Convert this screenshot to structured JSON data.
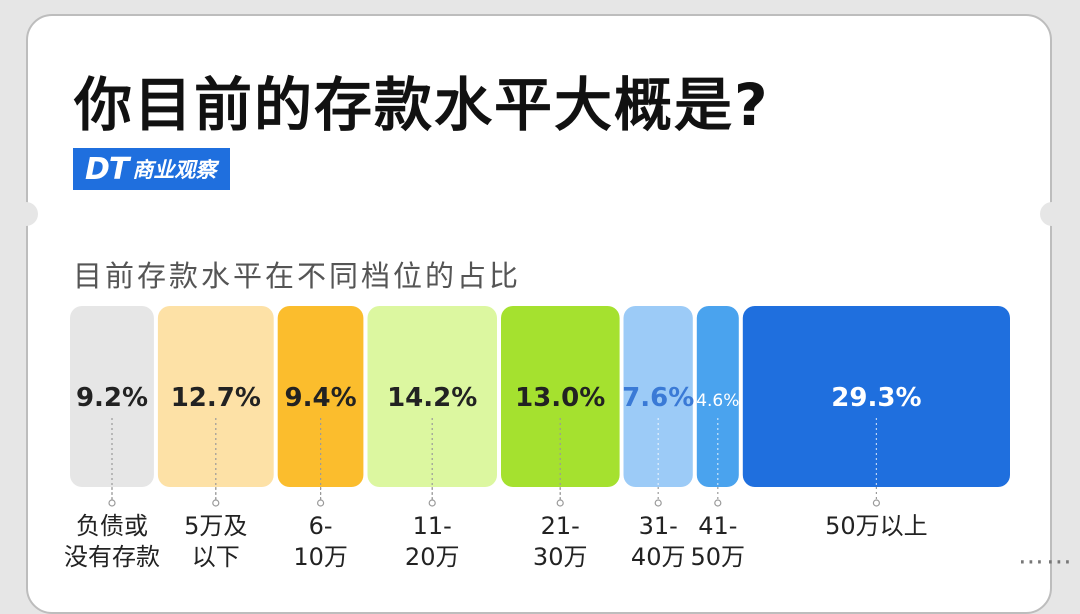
{
  "title": "你目前的存款水平大概是?",
  "brand": {
    "mark": "DT",
    "name": "商业观察",
    "color": "#1f6fde"
  },
  "subtitle": "目前存款水平在不同档位的占比",
  "chart_data": {
    "type": "bar",
    "orientation": "stacked-horizontal-proportional",
    "title": "",
    "categories": [
      [
        "负债或",
        "没有存款"
      ],
      [
        "5万及",
        "以下"
      ],
      [
        "6-",
        "10万"
      ],
      [
        "11-",
        "20万"
      ],
      [
        "21-",
        "30万"
      ],
      [
        "31-",
        "40万"
      ],
      [
        "41-",
        "50万"
      ],
      [
        "50万以上"
      ]
    ],
    "values": [
      9.2,
      12.7,
      9.4,
      14.2,
      13.0,
      7.6,
      4.6,
      29.3
    ],
    "value_labels": [
      "9.2%",
      "12.7%",
      "9.4%",
      "14.2%",
      "13.0%",
      "7.6%",
      "4.6%",
      "29.3%"
    ],
    "colors": [
      "#e6e6e6",
      "#fde1a6",
      "#fbbd2d",
      "#dcf7a0",
      "#a5e12f",
      "#9ccbf7",
      "#4aa3ee",
      "#1f6fde"
    ],
    "label_colors": [
      "#222222",
      "#222222",
      "#222222",
      "#222222",
      "#222222",
      "#3a7ad6",
      "#ffffff",
      "#ffffff"
    ],
    "unit": "%",
    "legend": "none",
    "grid": false
  },
  "more_indicator": "⋯⋯"
}
